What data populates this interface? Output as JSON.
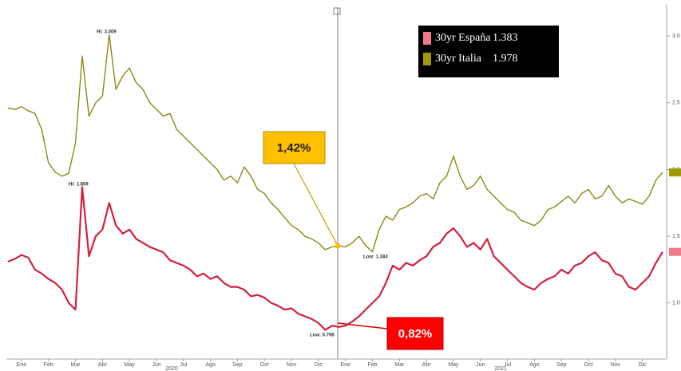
{
  "chart_data": {
    "type": "line",
    "categories": [
      null,
      null,
      "Ene",
      null,
      null,
      null,
      "Feb",
      null,
      null,
      null,
      "Mar",
      null,
      null,
      null,
      "Abr",
      null,
      null,
      null,
      "May",
      null,
      null,
      null,
      "Jun",
      null,
      null,
      null,
      "Jul",
      null,
      null,
      null,
      "Ago",
      null,
      null,
      null,
      "Sep",
      null,
      null,
      null,
      "Oct",
      null,
      null,
      null,
      "Nov",
      null,
      null,
      null,
      "Dic",
      null,
      null,
      null,
      "Ene",
      null,
      null,
      null,
      "Feb",
      null,
      null,
      null,
      "Mar",
      null,
      null,
      null,
      "Abr",
      null,
      null,
      null,
      "May",
      null,
      null,
      null,
      "Jun",
      null,
      null,
      null,
      "Jul",
      null,
      null,
      null,
      "Ago",
      null,
      null,
      null,
      "Sep",
      null,
      null,
      null,
      "Oct",
      null,
      null,
      null,
      "Nov",
      null,
      null,
      null,
      "Dic",
      null,
      null,
      null
    ],
    "years": [
      "2020",
      "2021"
    ],
    "series": [
      {
        "name": "30yr España",
        "color": "#d3203e",
        "swatch": "#f07a8a",
        "last": "1.383",
        "values": [
          1.31,
          1.33,
          1.36,
          1.34,
          1.25,
          1.22,
          1.18,
          1.15,
          1.1,
          1.0,
          0.95,
          1.869,
          1.35,
          1.5,
          1.55,
          1.75,
          1.58,
          1.52,
          1.55,
          1.48,
          1.45,
          1.42,
          1.4,
          1.38,
          1.32,
          1.3,
          1.28,
          1.25,
          1.2,
          1.22,
          1.18,
          1.2,
          1.15,
          1.12,
          1.12,
          1.1,
          1.05,
          1.06,
          1.04,
          1.0,
          0.98,
          0.95,
          0.96,
          0.92,
          0.9,
          0.88,
          0.85,
          0.798,
          0.83,
          0.82,
          0.83,
          0.86,
          0.9,
          0.95,
          1.0,
          1.05,
          1.15,
          1.28,
          1.25,
          1.3,
          1.28,
          1.32,
          1.35,
          1.42,
          1.45,
          1.52,
          1.56,
          1.5,
          1.42,
          1.45,
          1.4,
          1.48,
          1.35,
          1.3,
          1.25,
          1.2,
          1.15,
          1.12,
          1.1,
          1.15,
          1.18,
          1.2,
          1.25,
          1.22,
          1.28,
          1.3,
          1.35,
          1.38,
          1.32,
          1.3,
          1.22,
          1.2,
          1.12,
          1.1,
          1.15,
          1.2,
          1.3,
          1.383
        ]
      },
      {
        "name": "30yr Italia",
        "color": "#8a8a16",
        "swatch": "#a09a00",
        "last": "1.978",
        "values": [
          2.46,
          2.45,
          2.47,
          2.44,
          2.42,
          2.3,
          2.05,
          1.98,
          1.95,
          1.97,
          2.2,
          2.85,
          2.4,
          2.5,
          2.55,
          3.009,
          2.6,
          2.7,
          2.76,
          2.65,
          2.6,
          2.5,
          2.45,
          2.4,
          2.42,
          2.3,
          2.25,
          2.2,
          2.15,
          2.1,
          2.05,
          2.0,
          1.92,
          1.95,
          1.9,
          2.02,
          1.95,
          1.85,
          1.82,
          1.75,
          1.7,
          1.64,
          1.58,
          1.55,
          1.5,
          1.48,
          1.45,
          1.4,
          1.42,
          1.43,
          1.42,
          1.45,
          1.5,
          1.43,
          1.384,
          1.55,
          1.65,
          1.62,
          1.7,
          1.72,
          1.75,
          1.8,
          1.82,
          1.78,
          1.9,
          1.95,
          2.1,
          1.95,
          1.85,
          1.88,
          1.95,
          1.85,
          1.8,
          1.75,
          1.7,
          1.68,
          1.62,
          1.6,
          1.58,
          1.62,
          1.7,
          1.72,
          1.76,
          1.8,
          1.75,
          1.82,
          1.85,
          1.78,
          1.8,
          1.88,
          1.8,
          1.75,
          1.78,
          1.76,
          1.74,
          1.8,
          1.92,
          1.978
        ]
      }
    ],
    "ylim": [
      0.58,
      3.24
    ],
    "yticks": [
      {
        "value": 1,
        "label": "1.0"
      },
      {
        "value": 1.5,
        "label": "1.5"
      },
      {
        "value": 2,
        "label": "2.0"
      },
      {
        "value": 2.5,
        "label": "2.5"
      },
      {
        "value": 3,
        "label": "3.0"
      }
    ],
    "annotations": [
      "Hi: 3.009",
      "Hi: 1.869",
      "Low: 0.798",
      "Low: 1.384"
    ],
    "callouts": [
      "1,42%",
      "0,82%"
    ]
  }
}
